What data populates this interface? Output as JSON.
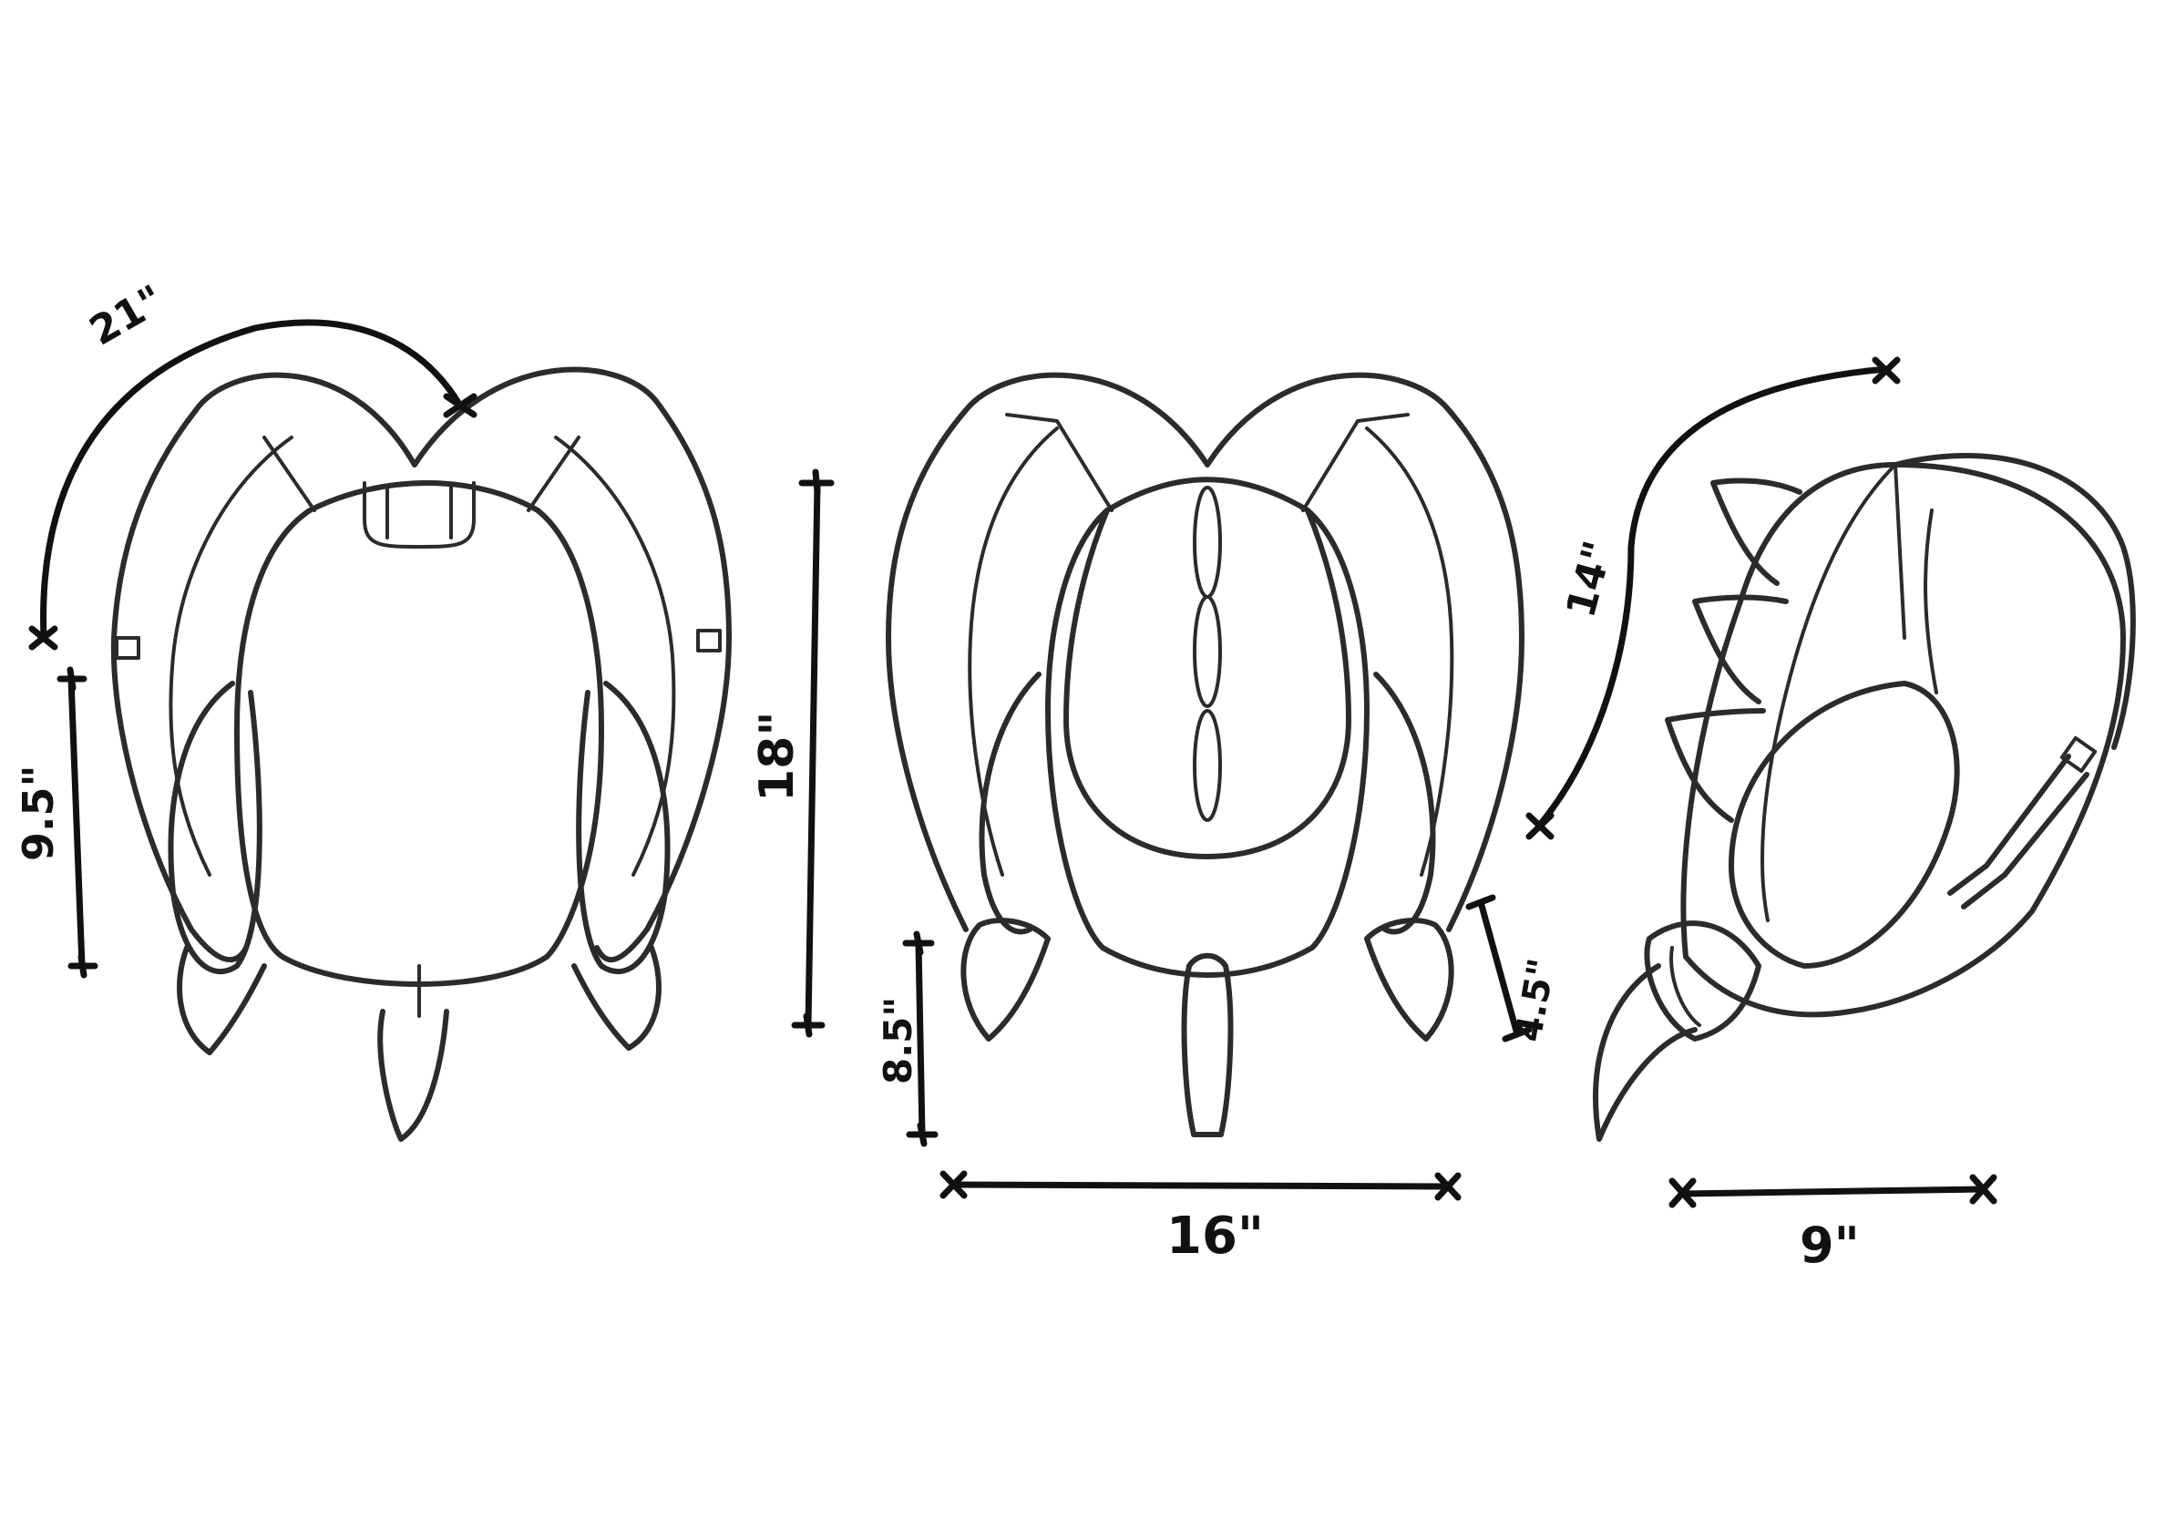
{
  "views": [
    {
      "id": "back",
      "dimensions": {
        "strap_length": "21\"",
        "height": "9.5\""
      }
    },
    {
      "id": "front",
      "dimensions": {
        "height": "18\"",
        "width": "16\"",
        "lower_height": "8.5\"",
        "small_width": "4.5\""
      }
    },
    {
      "id": "side",
      "dimensions": {
        "strap_height": "14\"",
        "depth": "9\""
      }
    }
  ]
}
